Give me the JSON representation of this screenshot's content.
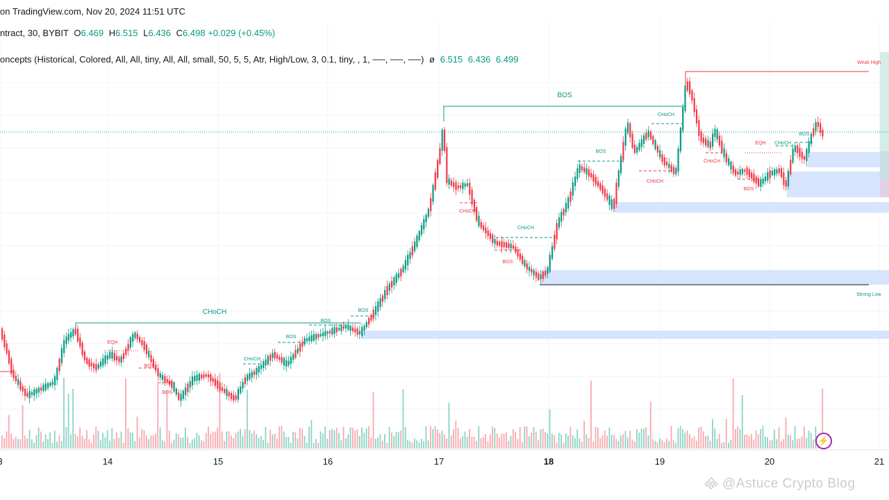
{
  "header": {
    "source_line": "on TradingView.com, Nov 20, 2024 11:51 UTC",
    "symbol": "ntract, 30, BYBIT",
    "ohlc": {
      "o_label": "O",
      "o": "6.469",
      "h_label": "H",
      "h": "6.515",
      "l_label": "L",
      "l": "6.436",
      "c_label": "C",
      "c": "6.498",
      "change": "+0.029 (+0.45%)"
    },
    "indicator": "oncepts (Historical, Colored, All, All, tiny, All, All, small, 50, 5, 5, Atr, High/Low, 3, 0.1, tiny, , 1, ──, ──, ──)",
    "indicator_symbol": "ø",
    "indicator_values": [
      "6.515",
      "6.436",
      "6.499"
    ]
  },
  "x_axis": {
    "dates": [
      "3",
      "14",
      "15",
      "16",
      "17",
      "18",
      "19",
      "20",
      "21"
    ],
    "bold": [
      "18"
    ]
  },
  "chart_labels": {
    "weak_high": "Weak High",
    "strong_low": "Strong Low",
    "bos": "BOS",
    "choch": "CHoCH",
    "eqh": "EQH"
  },
  "watermark": "@Astuce Crypto Blog",
  "colors": {
    "up": "#089981",
    "down": "#f23645",
    "fvg": "#d6e4fd",
    "bos_line": "#089981",
    "weak_high_line": "#f23645"
  },
  "icons": {
    "lightning": "lightning-icon",
    "watermark_logo": "binance-square-logo"
  }
}
